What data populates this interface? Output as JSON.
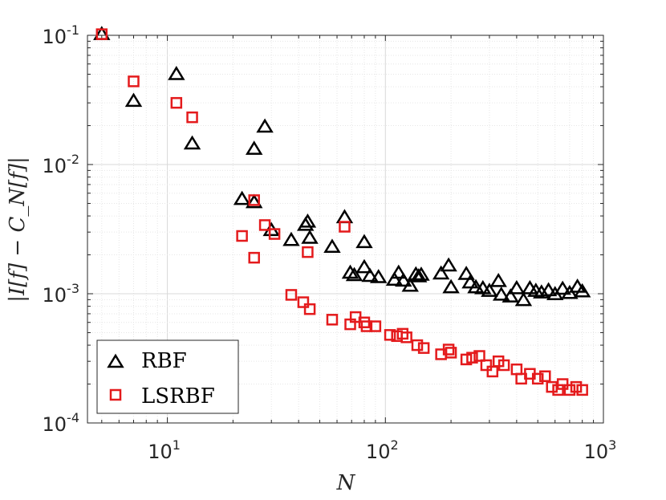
{
  "chart_data": {
    "type": "scatter",
    "xscale": "log",
    "yscale": "log",
    "xlim": [
      4.3,
      1000
    ],
    "ylim": [
      0.0001,
      0.1
    ],
    "grid": true,
    "minor_grid": true,
    "xlabel": "N",
    "ylabel": "|I[f] − C_N[f]|",
    "x_ticks": [
      {
        "base": "10",
        "exp": "1",
        "value": 10
      },
      {
        "base": "10",
        "exp": "2",
        "value": 100
      },
      {
        "base": "10",
        "exp": "3",
        "value": 1000
      }
    ],
    "y_ticks": [
      {
        "base": "10",
        "exp": "-4",
        "value": 0.0001
      },
      {
        "base": "10",
        "exp": "-3",
        "value": 0.001
      },
      {
        "base": "10",
        "exp": "-2",
        "value": 0.01
      },
      {
        "base": "10",
        "exp": "-1",
        "value": 0.1
      }
    ],
    "legend_position": "bottom-left",
    "series": [
      {
        "name": "RBF",
        "marker": "triangle",
        "color": "#000000",
        "points": [
          [
            5,
            0.102
          ],
          [
            7,
            0.031
          ],
          [
            11,
            0.05
          ],
          [
            13,
            0.0145
          ],
          [
            22,
            0.0054
          ],
          [
            25,
            0.0132
          ],
          [
            25,
            0.0051
          ],
          [
            28,
            0.0196
          ],
          [
            30,
            0.0031
          ],
          [
            37,
            0.0026
          ],
          [
            43,
            0.0034
          ],
          [
            44,
            0.0036
          ],
          [
            45,
            0.0027
          ],
          [
            57,
            0.0023
          ],
          [
            65,
            0.0039
          ],
          [
            69,
            0.00145
          ],
          [
            72,
            0.00139
          ],
          [
            80,
            0.0025
          ],
          [
            80,
            0.0016
          ],
          [
            85,
            0.00137
          ],
          [
            93,
            0.00134
          ],
          [
            110,
            0.00128
          ],
          [
            115,
            0.00145
          ],
          [
            121,
            0.00126
          ],
          [
            130,
            0.00115
          ],
          [
            138,
            0.00141
          ],
          [
            142,
            0.00136
          ],
          [
            146,
            0.0014
          ],
          [
            180,
            0.00143
          ],
          [
            195,
            0.00165
          ],
          [
            200,
            0.00112
          ],
          [
            235,
            0.00142
          ],
          [
            245,
            0.00122
          ],
          [
            260,
            0.00112
          ],
          [
            280,
            0.0011
          ],
          [
            300,
            0.00105
          ],
          [
            330,
            0.00125
          ],
          [
            340,
            0.00098
          ],
          [
            375,
            0.00095
          ],
          [
            400,
            0.0011
          ],
          [
            430,
            0.00089
          ],
          [
            460,
            0.0011
          ],
          [
            490,
            0.00105
          ],
          [
            520,
            0.00102
          ],
          [
            560,
            0.00106
          ],
          [
            600,
            0.00099
          ],
          [
            650,
            0.00109
          ],
          [
            700,
            0.00101
          ],
          [
            760,
            0.00113
          ],
          [
            800,
            0.00104
          ]
        ]
      },
      {
        "name": "LSRBF",
        "marker": "square",
        "color": "#e41a1c",
        "points": [
          [
            5,
            0.102
          ],
          [
            7,
            0.044
          ],
          [
            11,
            0.03
          ],
          [
            13,
            0.0232
          ],
          [
            22,
            0.0028
          ],
          [
            25,
            0.0019
          ],
          [
            25,
            0.0053
          ],
          [
            28,
            0.0034
          ],
          [
            31,
            0.0029
          ],
          [
            37,
            0.00098
          ],
          [
            42,
            0.00086
          ],
          [
            44,
            0.0021
          ],
          [
            45,
            0.00076
          ],
          [
            57,
            0.00063
          ],
          [
            65,
            0.0033
          ],
          [
            69,
            0.00058
          ],
          [
            73,
            0.00066
          ],
          [
            80,
            0.0006
          ],
          [
            82,
            0.00056
          ],
          [
            90,
            0.00056
          ],
          [
            105,
            0.00048
          ],
          [
            113,
            0.00047
          ],
          [
            120,
            0.00049
          ],
          [
            125,
            0.00046
          ],
          [
            140,
            0.0004
          ],
          [
            150,
            0.00038
          ],
          [
            180,
            0.00034
          ],
          [
            195,
            0.00037
          ],
          [
            200,
            0.00035
          ],
          [
            235,
            0.00031
          ],
          [
            250,
            0.00032
          ],
          [
            270,
            0.00033
          ],
          [
            290,
            0.00028
          ],
          [
            310,
            0.00025
          ],
          [
            330,
            0.0003
          ],
          [
            350,
            0.00028
          ],
          [
            400,
            0.00026
          ],
          [
            420,
            0.00022
          ],
          [
            460,
            0.00024
          ],
          [
            500,
            0.00022
          ],
          [
            540,
            0.00023
          ],
          [
            580,
            0.00019
          ],
          [
            620,
            0.00018
          ],
          [
            650,
            0.0002
          ],
          [
            700,
            0.00018
          ],
          [
            750,
            0.00019
          ],
          [
            800,
            0.00018
          ]
        ]
      }
    ]
  }
}
